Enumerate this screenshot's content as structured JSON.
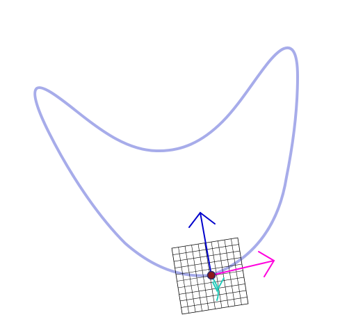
{
  "scene": {
    "background": "#ffffff",
    "curve_color": "#a7acea",
    "grid_color": "#000000",
    "arrow_up_color": "#0000cc",
    "arrow_right_color": "#ff00dd",
    "arrow_down_color": "#22ccbb",
    "tangent_color": "#1f6f1f",
    "marker_fill": "#8c1a1a",
    "marker_stroke": "#2a2a6a"
  }
}
